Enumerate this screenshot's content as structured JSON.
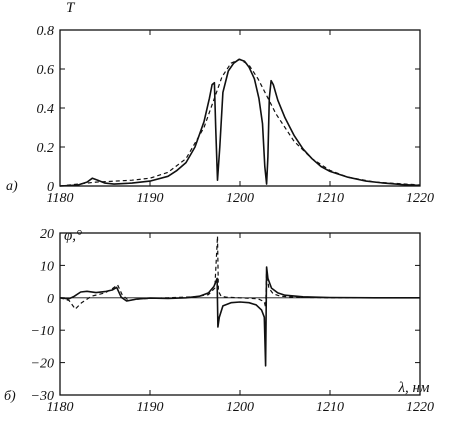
{
  "chart_data": [
    {
      "type": "line",
      "panel_label": "а)",
      "ylabel": "T",
      "xlabel": "",
      "xlim": [
        1180,
        1220
      ],
      "ylim": [
        0,
        0.8
      ],
      "xticks": [
        "1180",
        "1190",
        "1200",
        "1210",
        "1220"
      ],
      "yticks": [
        "0",
        "0.2",
        "0.4",
        "0.6",
        "0.8"
      ],
      "series": [
        {
          "style": "solid",
          "x": [
            1180,
            1182,
            1183,
            1183.6,
            1184.2,
            1185,
            1186,
            1188,
            1190,
            1192,
            1193,
            1194,
            1195,
            1196,
            1196.6,
            1196.9,
            1197.15,
            1197.3,
            1197.5,
            1197.75,
            1198.1,
            1198.7,
            1199.3,
            1199.9,
            1200.5,
            1201,
            1201.6,
            1202.1,
            1202.5,
            1202.75,
            1202.95,
            1203.1,
            1203.25,
            1203.45,
            1203.7,
            1204.2,
            1205,
            1206,
            1207,
            1208,
            1209,
            1210,
            1212,
            1214,
            1216,
            1218,
            1220
          ],
          "y": [
            0.0,
            0.005,
            0.02,
            0.04,
            0.03,
            0.015,
            0.01,
            0.015,
            0.025,
            0.05,
            0.08,
            0.12,
            0.2,
            0.33,
            0.45,
            0.52,
            0.53,
            0.3,
            0.03,
            0.2,
            0.48,
            0.59,
            0.63,
            0.65,
            0.64,
            0.61,
            0.55,
            0.45,
            0.32,
            0.1,
            0.01,
            0.15,
            0.45,
            0.54,
            0.52,
            0.44,
            0.35,
            0.26,
            0.19,
            0.14,
            0.1,
            0.075,
            0.045,
            0.025,
            0.015,
            0.007,
            0.003
          ]
        },
        {
          "style": "dashed",
          "x": [
            1180,
            1184,
            1188,
            1190,
            1192,
            1194,
            1196,
            1197,
            1198,
            1199,
            1200,
            1201,
            1202,
            1203,
            1204,
            1206,
            1208,
            1210,
            1212,
            1215,
            1220
          ],
          "y": [
            0.0,
            0.02,
            0.03,
            0.04,
            0.07,
            0.14,
            0.3,
            0.43,
            0.56,
            0.63,
            0.65,
            0.62,
            0.55,
            0.46,
            0.37,
            0.23,
            0.14,
            0.08,
            0.045,
            0.02,
            0.005
          ]
        }
      ]
    },
    {
      "type": "line",
      "panel_label": "б)",
      "ylabel": "φ,°",
      "xlabel": "λ, нм",
      "xlim": [
        1180,
        1220
      ],
      "ylim": [
        -30,
        20
      ],
      "xticks": [
        "1180",
        "1190",
        "1200",
        "1210",
        "1220"
      ],
      "yticks": [
        "−30",
        "−20",
        "−10",
        "0",
        "10",
        "20"
      ],
      "series": [
        {
          "style": "solid",
          "x": [
            1180,
            1181,
            1181.6,
            1182.3,
            1183,
            1184,
            1185,
            1185.8,
            1186.3,
            1186.8,
            1187.4,
            1188.5,
            1190,
            1192,
            1194,
            1195.5,
            1196.5,
            1197.1,
            1197.45,
            1197.55,
            1197.7,
            1198.1,
            1199,
            1200,
            1201,
            1201.8,
            1202.4,
            1202.7,
            1202.85,
            1202.95,
            1203.1,
            1203.5,
            1204.2,
            1205,
            1207,
            1210,
            1215,
            1220
          ],
          "y": [
            0,
            -0.3,
            0.5,
            1.8,
            2.0,
            1.6,
            1.9,
            2.4,
            3.2,
            0.2,
            -1.0,
            -0.4,
            -0.1,
            -0.2,
            0,
            0.5,
            1.5,
            3.5,
            6.0,
            -9.0,
            -6.0,
            -2.5,
            -1.5,
            -1.3,
            -1.5,
            -2.2,
            -3.8,
            -6.0,
            -21.0,
            9.5,
            6.0,
            3.0,
            1.5,
            0.8,
            0.3,
            0.1,
            0.0,
            0.0
          ]
        },
        {
          "style": "dashed",
          "x": [
            1180,
            1181,
            1181.7,
            1182.4,
            1183.5,
            1185,
            1185.9,
            1186.4,
            1186.9,
            1187.6,
            1189,
            1192,
            1195,
            1196.5,
            1197.2,
            1197.5,
            1197.6,
            1197.9,
            1198.5,
            1200,
            1202,
            1202.7,
            1202.85,
            1202.95,
            1203.2,
            1203.7,
            1204.5,
            1206,
            1210,
            1220
          ],
          "y": [
            0,
            -0.8,
            -3.5,
            -1.5,
            0.5,
            1.5,
            3.0,
            4.0,
            1.0,
            -0.8,
            -0.3,
            0,
            0.3,
            1.0,
            3.0,
            19.0,
            2.0,
            0.5,
            0.2,
            0,
            -0.3,
            -1.2,
            -3.0,
            8.5,
            3.0,
            1.2,
            0.5,
            0.2,
            0,
            0
          ]
        }
      ]
    }
  ]
}
